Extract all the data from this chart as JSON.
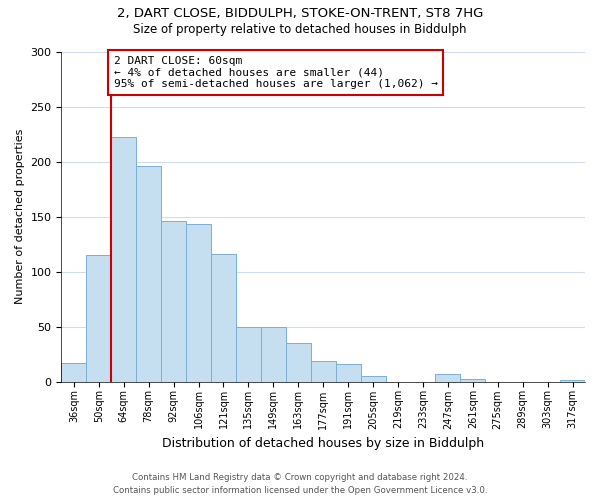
{
  "title_line1": "2, DART CLOSE, BIDDULPH, STOKE-ON-TRENT, ST8 7HG",
  "title_line2": "Size of property relative to detached houses in Biddulph",
  "xlabel": "Distribution of detached houses by size in Biddulph",
  "ylabel": "Number of detached properties",
  "bin_labels": [
    "36sqm",
    "50sqm",
    "64sqm",
    "78sqm",
    "92sqm",
    "106sqm",
    "121sqm",
    "135sqm",
    "149sqm",
    "163sqm",
    "177sqm",
    "191sqm",
    "205sqm",
    "219sqm",
    "233sqm",
    "247sqm",
    "261sqm",
    "275sqm",
    "289sqm",
    "303sqm",
    "317sqm"
  ],
  "bar_heights": [
    17,
    115,
    222,
    196,
    146,
    143,
    116,
    50,
    50,
    35,
    19,
    16,
    5,
    0,
    0,
    7,
    2,
    0,
    0,
    0,
    1
  ],
  "bar_color": "#c5dff0",
  "bar_edge_color": "#7aafd4",
  "vline_x_idx": 2,
  "vline_color": "#cc0000",
  "annotation_line1": "2 DART CLOSE: 60sqm",
  "annotation_line2": "← 4% of detached houses are smaller (44)",
  "annotation_line3": "95% of semi-detached houses are larger (1,062) →",
  "annotation_box_color": "#ffffff",
  "annotation_box_edge": "#cc0000",
  "ylim": [
    0,
    300
  ],
  "yticks": [
    0,
    50,
    100,
    150,
    200,
    250,
    300
  ],
  "footer_line1": "Contains HM Land Registry data © Crown copyright and database right 2024.",
  "footer_line2": "Contains public sector information licensed under the Open Government Licence v3.0.",
  "bg_color": "#ffffff",
  "grid_color": "#d0dcea"
}
